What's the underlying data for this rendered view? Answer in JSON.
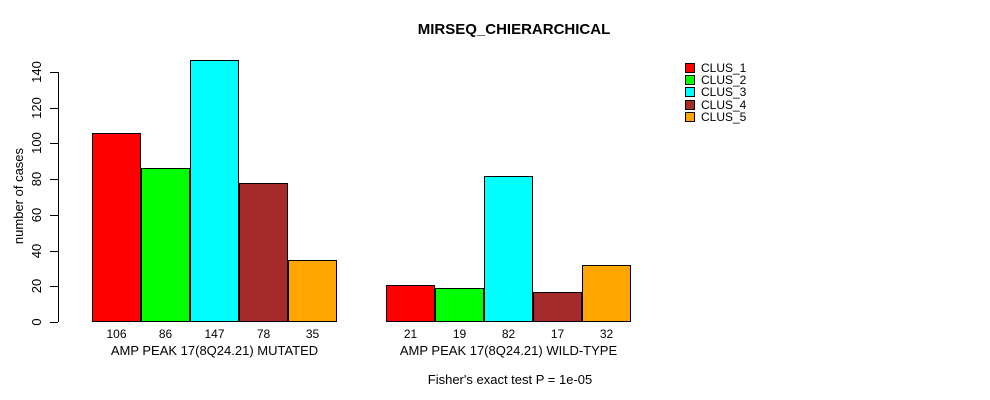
{
  "chart_data": {
    "type": "bar",
    "title": "MIRSEQ_CHIERARCHICAL",
    "ylabel": "number of cases",
    "xlabel": "",
    "ylim": [
      0,
      140
    ],
    "yticks": [
      0,
      20,
      40,
      60,
      80,
      100,
      120,
      140
    ],
    "grid": false,
    "legend_position": "top-right",
    "series": [
      {
        "name": "CLUS_1",
        "color": "#ff0000"
      },
      {
        "name": "CLUS_2",
        "color": "#00ff00"
      },
      {
        "name": "CLUS_3",
        "color": "#00ffff"
      },
      {
        "name": "CLUS_4",
        "color": "#a52a2a"
      },
      {
        "name": "CLUS_5",
        "color": "#ffa500"
      }
    ],
    "groups": [
      {
        "label": "AMP PEAK 17(8Q24.21) MUTATED",
        "values": [
          106,
          86,
          147,
          78,
          35
        ]
      },
      {
        "label": "AMP PEAK 17(8Q24.21) WILD-TYPE",
        "values": [
          21,
          19,
          82,
          17,
          32
        ]
      }
    ],
    "bar_value_labels_shown": true,
    "annotation": "Fisher's exact test P = 1e-05"
  }
}
